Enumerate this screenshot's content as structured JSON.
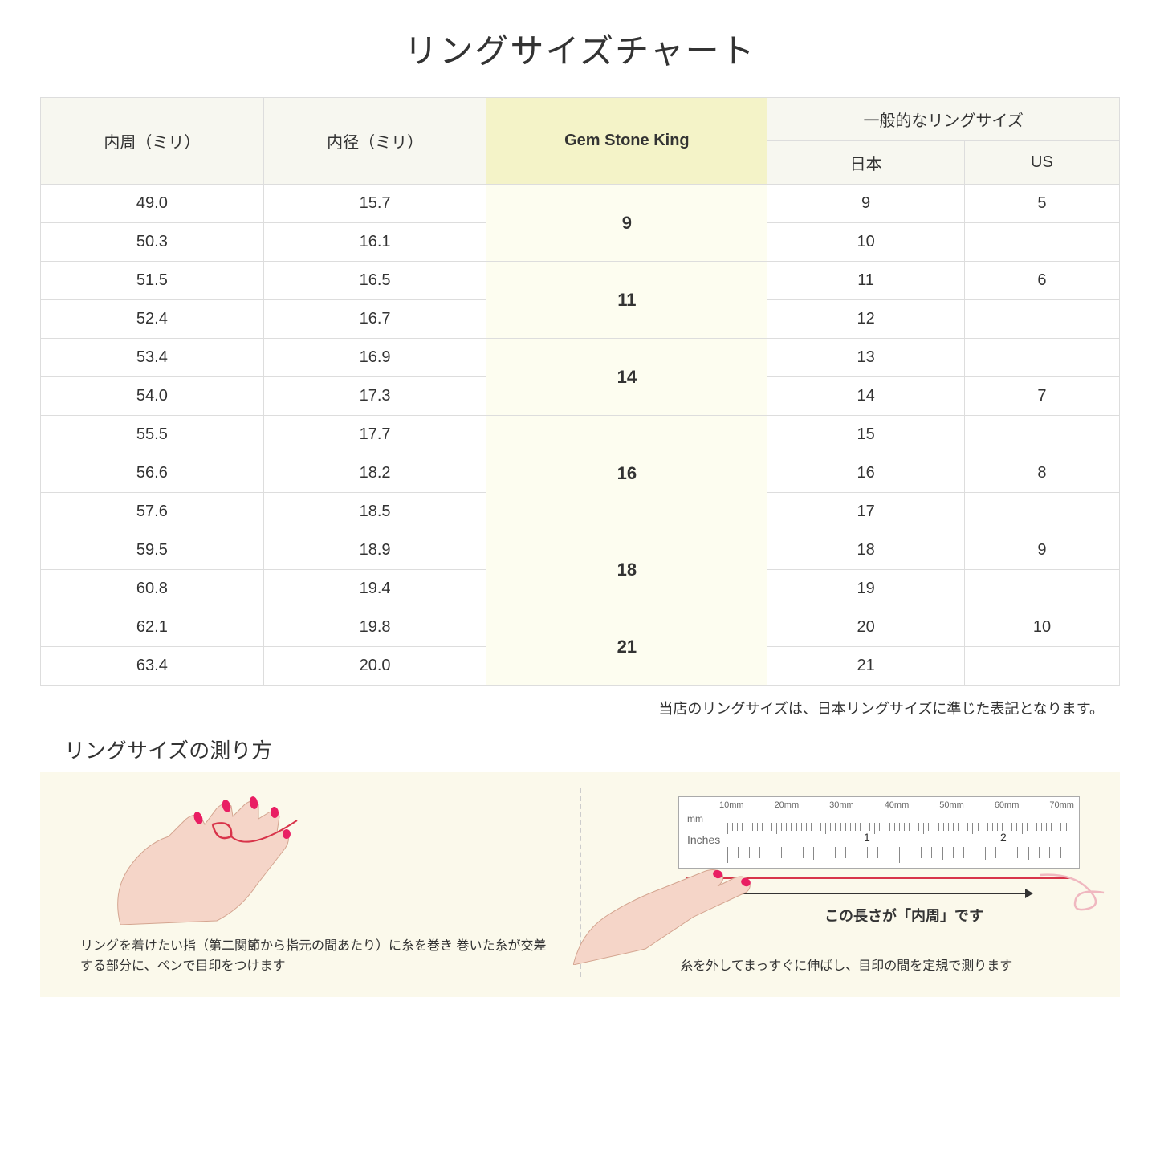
{
  "title": "リングサイズチャート",
  "table": {
    "header_circumference": "内周（ミリ）",
    "header_diameter": "内径（ミリ）",
    "header_gsk": "Gem Stone King",
    "header_common": "一般的なリングサイズ",
    "header_jp": "日本",
    "header_us": "US",
    "groups": [
      {
        "gsk": "9",
        "rows": [
          {
            "c": "49.0",
            "d": "15.7",
            "jp": "9",
            "us": "5"
          },
          {
            "c": "50.3",
            "d": "16.1",
            "jp": "10",
            "us": ""
          }
        ]
      },
      {
        "gsk": "11",
        "rows": [
          {
            "c": "51.5",
            "d": "16.5",
            "jp": "11",
            "us": "6"
          },
          {
            "c": "52.4",
            "d": "16.7",
            "jp": "12",
            "us": ""
          }
        ]
      },
      {
        "gsk": "14",
        "rows": [
          {
            "c": "53.4",
            "d": "16.9",
            "jp": "13",
            "us": ""
          },
          {
            "c": "54.0",
            "d": "17.3",
            "jp": "14",
            "us": "7"
          }
        ]
      },
      {
        "gsk": "16",
        "rows": [
          {
            "c": "55.5",
            "d": "17.7",
            "jp": "15",
            "us": ""
          },
          {
            "c": "56.6",
            "d": "18.2",
            "jp": "16",
            "us": "8"
          },
          {
            "c": "57.6",
            "d": "18.5",
            "jp": "17",
            "us": ""
          }
        ]
      },
      {
        "gsk": "18",
        "rows": [
          {
            "c": "59.5",
            "d": "18.9",
            "jp": "18",
            "us": "9"
          },
          {
            "c": "60.8",
            "d": "19.4",
            "jp": "19",
            "us": ""
          }
        ]
      },
      {
        "gsk": "21",
        "rows": [
          {
            "c": "62.1",
            "d": "19.8",
            "jp": "20",
            "us": "10"
          },
          {
            "c": "63.4",
            "d": "20.0",
            "jp": "21",
            "us": ""
          }
        ]
      }
    ]
  },
  "note": "当店のリングサイズは、日本リングサイズに準じた表記となります。",
  "howto_title": "リングサイズの測り方",
  "howto_left_caption": "リングを着けたい指（第二関節から指元の間あたり）に糸を巻き\n巻いた糸が交差する部分に、ペンで目印をつけます",
  "howto_right_caption": "糸を外してまっすぐに伸ばし、目印の間を定規で測ります",
  "arrow_label": "この長さが「内周」です",
  "ruler": {
    "mm_label": "mm",
    "inches_label": "Inches",
    "mm_marks": [
      "10mm",
      "20mm",
      "30mm",
      "40mm",
      "50mm",
      "60mm",
      "70mm"
    ],
    "inch_marks": [
      "1",
      "2"
    ]
  },
  "colors": {
    "header_bg": "#f7f7f0",
    "gsk_header_bg": "#f4f3c8",
    "gsk_cell_bg": "#fdfdf0",
    "border": "#dddddd",
    "howto_bg": "#fbf9eb",
    "skin": "#f5d5c8",
    "nail": "#e91e63",
    "thread": "#d8344a"
  }
}
